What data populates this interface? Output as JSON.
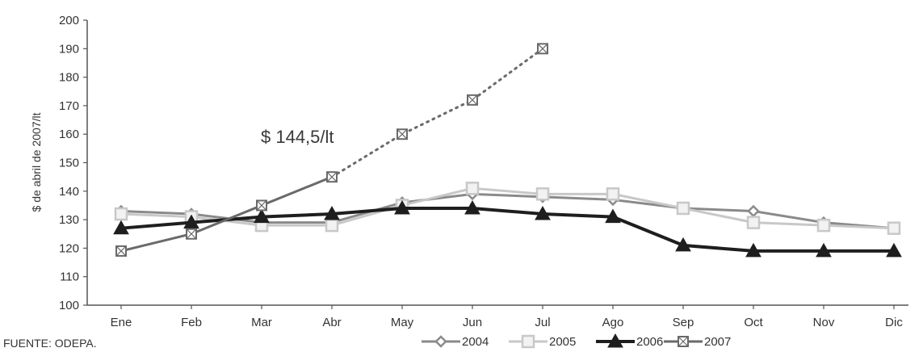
{
  "chart_data": {
    "type": "line",
    "ylabel": "$ de abril de 2007/lt",
    "xlabel": "",
    "categories": [
      "Ene",
      "Feb",
      "Mar",
      "Abr",
      "May",
      "Jun",
      "Jul",
      "Ago",
      "Sep",
      "Oct",
      "Nov",
      "Dic"
    ],
    "ylim": [
      100,
      200
    ],
    "yticks": [
      100,
      110,
      120,
      130,
      140,
      150,
      160,
      170,
      180,
      190,
      200
    ],
    "grid": false,
    "legend_position": "bottom",
    "annotation": "$ 144,5/lt",
    "source": "FUENTE: ODEPA.",
    "series": [
      {
        "name": "2004",
        "color": "#8a8a8a",
        "marker": "diamond",
        "style": "solid",
        "values": [
          133,
          132,
          129,
          129,
          136,
          139,
          138,
          137,
          134,
          133,
          129,
          127
        ]
      },
      {
        "name": "2005",
        "color": "#c8c8c8",
        "marker": "square",
        "style": "solid",
        "values": [
          132,
          131,
          128,
          128,
          135,
          141,
          139,
          139,
          134,
          129,
          128,
          127
        ]
      },
      {
        "name": "2006",
        "color": "#1e1e1e",
        "marker": "triangle",
        "style": "solid",
        "values": [
          127,
          129,
          131,
          132,
          134,
          134,
          132,
          131,
          121,
          119,
          119,
          119
        ]
      },
      {
        "name": "2007",
        "color": "#6a6a6a",
        "marker": "square-x",
        "style": "mixed",
        "solid_until_index": 3,
        "values": [
          119,
          125,
          135,
          145,
          160,
          172,
          190,
          null,
          null,
          null,
          null,
          null
        ]
      }
    ]
  }
}
